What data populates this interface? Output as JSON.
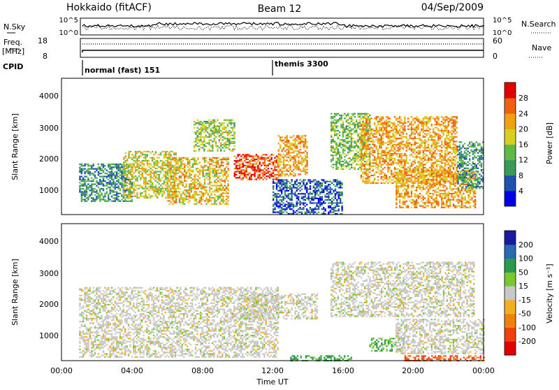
{
  "header": {
    "title": "Hokkaido (fitACF)",
    "beam": "Beam 12",
    "date": "04/Sep/2009"
  },
  "top_panel": {
    "nsky_label": "N.Sky",
    "left_tick_top": "10^5",
    "left_tick_bottom": "10^0",
    "right_tick_top": "10^5",
    "right_tick_bottom": "10^0",
    "nsearch_label": "N.Search"
  },
  "freq_panel": {
    "label_line1": "Freq.",
    "label_line2": "[MHz]",
    "left_ticks": [
      "18",
      "8"
    ],
    "right_ticks": [
      "60",
      "0"
    ],
    "nave_label": "Nave"
  },
  "cpid": {
    "label": "CPID",
    "segments": [
      {
        "name": "normal (fast) 151",
        "start_h": 1.0,
        "end_h": 12.2
      },
      {
        "name": "themis 3300",
        "start_h": 12.2,
        "end_h": 24.0
      }
    ]
  },
  "colorbars": {
    "power": {
      "label": "Power [dB]",
      "ticks": [
        "4",
        "8",
        "12",
        "16",
        "20",
        "24",
        "28"
      ],
      "colors": [
        "#0000e6",
        "#2050b0",
        "#3a9a5a",
        "#5fb84a",
        "#d8d020",
        "#f0a010",
        "#f06010",
        "#e00000"
      ]
    },
    "velocity": {
      "label": "Velocity [m s⁻¹]",
      "ticks": [
        "200",
        "100",
        "50",
        "15",
        "-15",
        "-50",
        "-100",
        "-200"
      ],
      "colors": [
        "#1a1aa0",
        "#2a6ab0",
        "#2a9a4a",
        "#7ac830",
        "#c8c8c8",
        "#f0b020",
        "#f08010",
        "#f04010",
        "#e00000"
      ]
    }
  },
  "axes": {
    "ylabel": "Slant Range [km]",
    "yticks": [
      "1000",
      "2000",
      "3000",
      "4000"
    ],
    "xticks": [
      "00:00",
      "04:00",
      "08:00",
      "12:00",
      "16:00",
      "20:00",
      "00:00"
    ],
    "xlabel": "Time UT"
  },
  "chart_data": {
    "type": "heatmap",
    "title": "Hokkaido (fitACF)",
    "xlabel": "Time UT",
    "ylabel": "Slant Range [km]",
    "xlim_hours": [
      0,
      24
    ],
    "ylim_km": [
      180,
      4500
    ],
    "panels": [
      {
        "name": "Power [dB]",
        "range": [
          0,
          30
        ],
        "features": [
          {
            "t": [
              1.0,
              4.0
            ],
            "r": [
              600,
              1800
            ],
            "level": 10
          },
          {
            "t": [
              3.5,
              6.5
            ],
            "r": [
              700,
              2200
            ],
            "level": 18
          },
          {
            "t": [
              6.0,
              9.5
            ],
            "r": [
              500,
              2000
            ],
            "level": 20
          },
          {
            "t": [
              7.5,
              9.8
            ],
            "r": [
              2200,
              3200
            ],
            "level": 16
          },
          {
            "t": [
              9.8,
              12.3
            ],
            "r": [
              1300,
              2100
            ],
            "level": 27
          },
          {
            "t": [
              12.3,
              14.0
            ],
            "r": [
              1400,
              2700
            ],
            "level": 22
          },
          {
            "t": [
              12.0,
              16.0
            ],
            "r": [
              200,
              1300
            ],
            "level": 6
          },
          {
            "t": [
              15.3,
              17.5
            ],
            "r": [
              1600,
              3400
            ],
            "level": 14
          },
          {
            "t": [
              17.0,
              22.5
            ],
            "r": [
              1200,
              3300
            ],
            "level": 22
          },
          {
            "t": [
              19.0,
              23.5
            ],
            "r": [
              400,
              1600
            ],
            "level": 22
          },
          {
            "t": [
              22.5,
              24.0
            ],
            "r": [
              1000,
              2500
            ],
            "level": 10
          }
        ]
      },
      {
        "name": "Velocity [m s-1]",
        "range": [
          -200,
          200
        ],
        "features": [
          {
            "t": [
              1.0,
              12.3
            ],
            "r": [
              300,
              2500
            ],
            "level": 0
          },
          {
            "t": [
              10.0,
              14.5
            ],
            "r": [
              1500,
              2300
            ],
            "level": 0
          },
          {
            "t": [
              13.0,
              16.5
            ],
            "r": [
              200,
              350
            ],
            "level": 40
          },
          {
            "t": [
              15.3,
              23.5
            ],
            "r": [
              1600,
              3300
            ],
            "level": 0
          },
          {
            "t": [
              17.5,
              19.5
            ],
            "r": [
              500,
              900
            ],
            "level": 30
          },
          {
            "t": [
              19.0,
              24.0
            ],
            "r": [
              400,
              1500
            ],
            "level": 0
          },
          {
            "t": [
              19.5,
              24.0
            ],
            "r": [
              180,
              350
            ],
            "level": -80
          }
        ]
      }
    ]
  }
}
